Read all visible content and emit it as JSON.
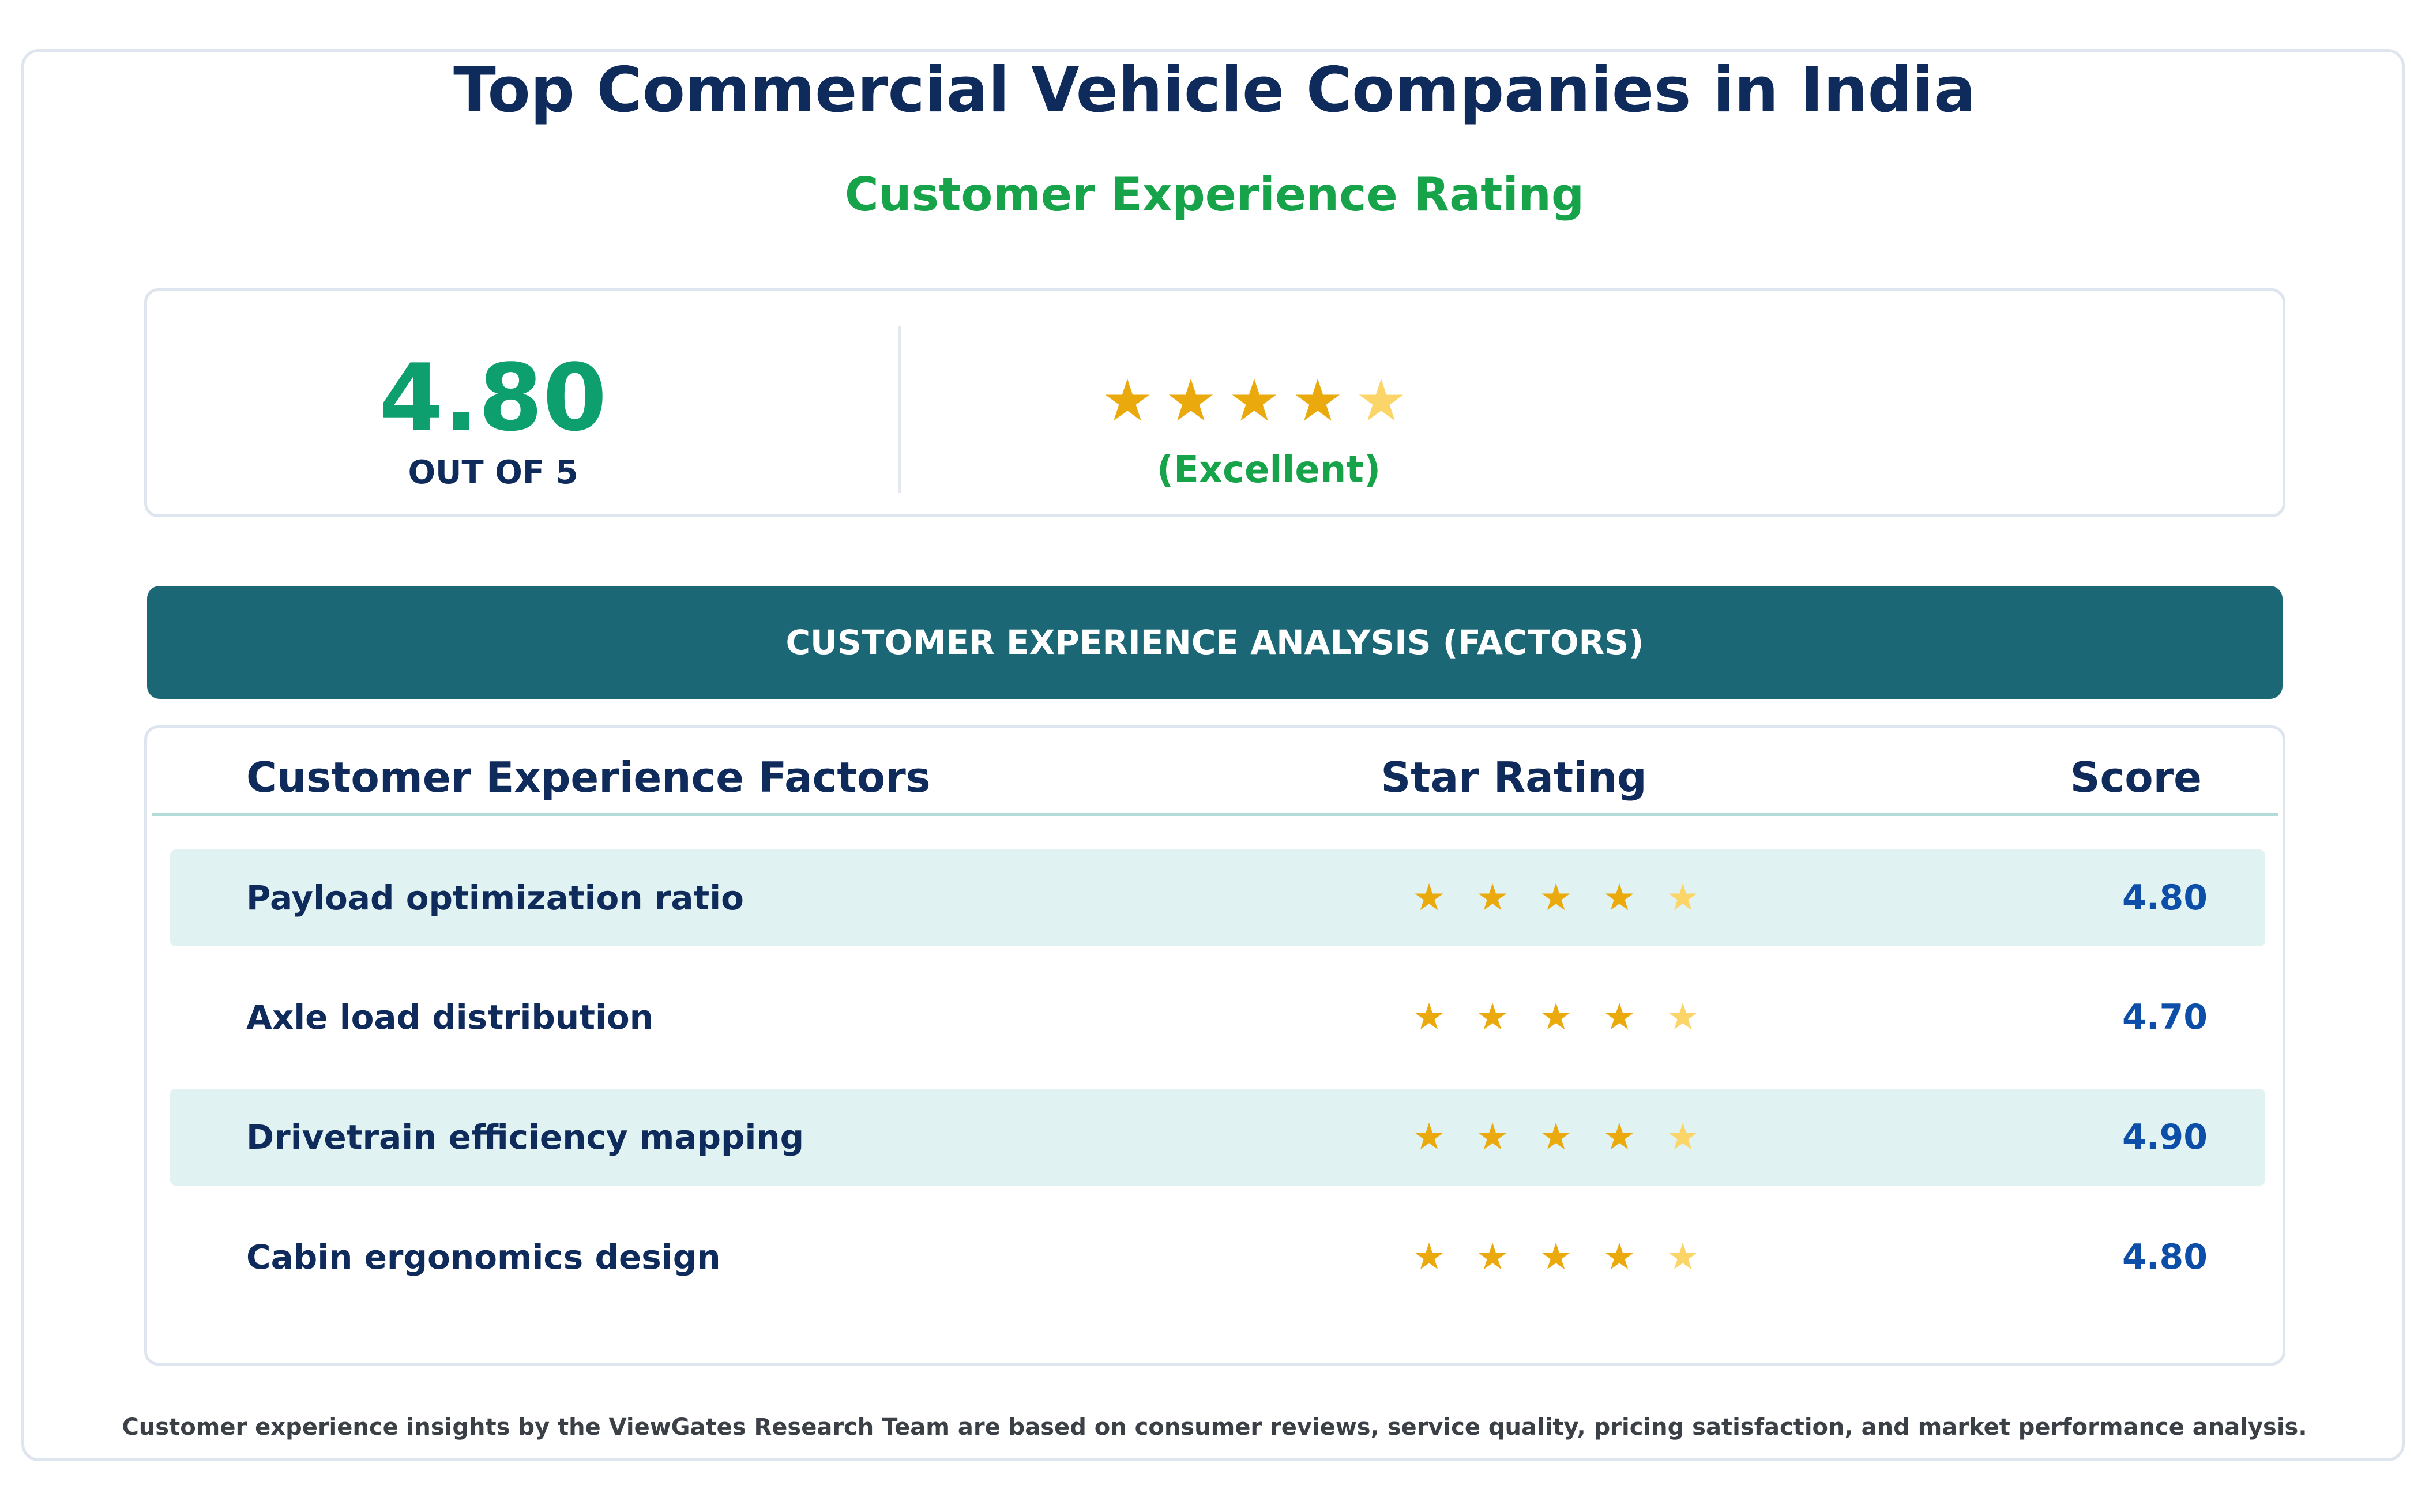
{
  "header": {
    "title": "Top Commercial Vehicle Companies in India",
    "subtitle": "Customer Experience Rating"
  },
  "summary": {
    "score": "4.80",
    "out_of": "OUT OF 5",
    "stars_filled": 4,
    "stars_total": 5,
    "rating_label": "(Excellent)"
  },
  "banner": {
    "label": "CUSTOMER EXPERIENCE ANALYSIS (FACTORS)"
  },
  "table": {
    "columns": [
      "Customer Experience Factors",
      "Star Rating",
      "Score"
    ],
    "rows": [
      {
        "factor": "Payload optimization ratio",
        "stars_filled": 4,
        "score": "4.80"
      },
      {
        "factor": "Axle load distribution",
        "stars_filled": 4,
        "score": "4.70"
      },
      {
        "factor": "Drivetrain efficiency mapping",
        "stars_filled": 4,
        "score": "4.90"
      },
      {
        "factor": "Cabin ergonomics design",
        "stars_filled": 4,
        "score": "4.80"
      }
    ]
  },
  "footnote": "Customer experience insights by the ViewGates Research Team are based on consumer reviews, service quality, pricing satisfaction, and market performance analysis.",
  "colors": {
    "navy": "#0f2b5b",
    "green": "#16a34a",
    "score_green": "#0e9f6e",
    "banner_teal": "#1c6776",
    "star_full": "#eaa90c",
    "star_light": "#fcd568",
    "row_shade": "#e0f2f1",
    "score_blue": "#0d4fa8"
  },
  "icons": {
    "star": "star-icon"
  }
}
